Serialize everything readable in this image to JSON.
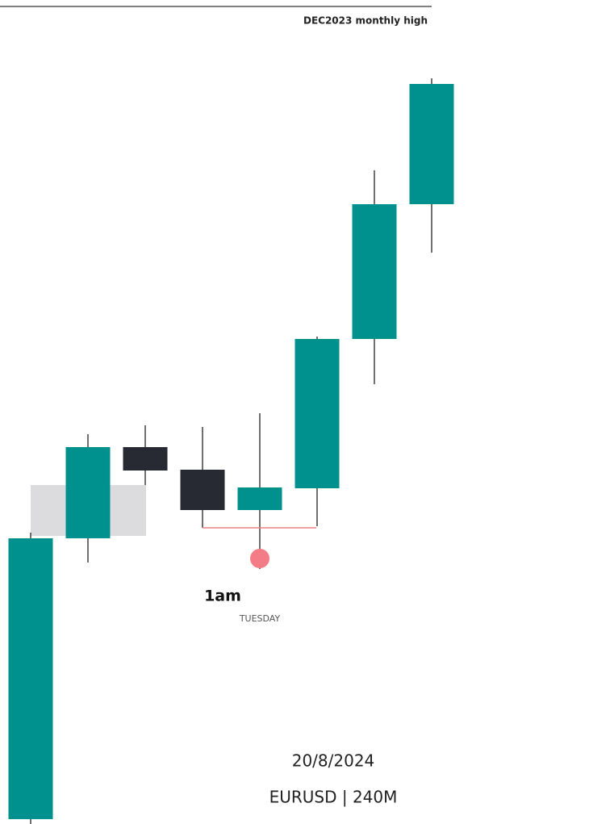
{
  "chart_data": {
    "type": "candlestick",
    "annotations": {
      "level": "DEC2023 monthly  high",
      "time": "1am",
      "day": "TUESDAY",
      "date": "20/8/2024",
      "symbol": "EURUSD | 240M"
    },
    "up_color": "#00918f",
    "down_color": "#272a33",
    "open": [
      0.6,
      35.4,
      46.7,
      43.9,
      38.9,
      41.6,
      60.1,
      76.8
    ],
    "high": [
      36.1,
      48.3,
      49.4,
      49.2,
      50.9,
      60.4,
      81.0,
      92.4
    ],
    "low": [
      0,
      32.4,
      42.0,
      36.7,
      31.6,
      36.9,
      54.5,
      70.8
    ],
    "close": [
      35.4,
      46.7,
      43.8,
      38.9,
      41.7,
      60.1,
      76.8,
      91.7
    ]
  }
}
